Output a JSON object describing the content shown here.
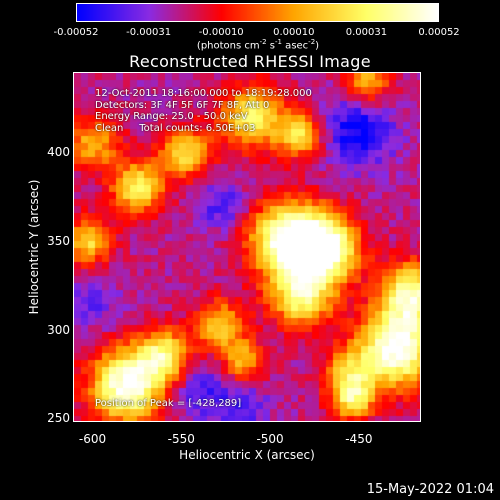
{
  "colorbar": {
    "ticks": [
      "-0.00052",
      "-0.00031",
      "-0.00010",
      "0.00010",
      "0.00031",
      "0.00052"
    ],
    "unit_base": "(photons cm",
    "unit_exp1": "-2",
    "unit_mid1": " s",
    "unit_exp2": "-1",
    "unit_mid2": " asec",
    "unit_exp3": "-2",
    "unit_end": ")"
  },
  "info_lines": [
    "12-Oct-2011 18:16:00.000 to 18:19:28.000",
    "Detectors: 3F 4F 5F 6F 7F 8F, Att 0",
    "Energy Range: 25.0 - 50.0 keV",
    "Clean     Total counts: 6.50E+03"
  ],
  "peak_text": "Position of Peak = [-428,289]",
  "footer_date": "15-May-2022 01:04",
  "chart_data": {
    "type": "heatmap",
    "title": "Reconstructed RHESSI Image",
    "xlabel": "Heliocentric X (arcsec)",
    "ylabel": "Heliocentric Y (arcsec)",
    "xlim": [
      -611,
      -415
    ],
    "ylim": [
      248,
      445
    ],
    "xticks": [
      "-600",
      "-550",
      "-500",
      "-450"
    ],
    "xtick_values": [
      -600,
      -550,
      -500,
      -450
    ],
    "yticks": [
      "250",
      "300",
      "350",
      "400"
    ],
    "ytick_values": [
      250,
      300,
      350,
      400
    ],
    "value_range": [
      -0.00052,
      0.00052
    ],
    "colormap": [
      "#0000ff",
      "#8a2be2",
      "#ff0000",
      "#ffa500",
      "#ffff66",
      "#ffffff"
    ],
    "peak": [
      -428,
      289
    ],
    "blobs": [
      {
        "x": -489,
        "y": 350,
        "sigma": 15,
        "amp": 1.0
      },
      {
        "x": -468,
        "y": 345,
        "sigma": 13,
        "amp": 0.9
      },
      {
        "x": -482,
        "y": 318,
        "sigma": 12,
        "amp": 0.7
      },
      {
        "x": -428,
        "y": 289,
        "sigma": 15,
        "amp": 1.0
      },
      {
        "x": -420,
        "y": 320,
        "sigma": 12,
        "amp": 0.8
      },
      {
        "x": -581,
        "y": 268,
        "sigma": 14,
        "amp": 1.0
      },
      {
        "x": -560,
        "y": 285,
        "sigma": 10,
        "amp": 0.7
      },
      {
        "x": -528,
        "y": 302,
        "sigma": 10,
        "amp": 0.55
      },
      {
        "x": -575,
        "y": 380,
        "sigma": 10,
        "amp": 0.7
      },
      {
        "x": -510,
        "y": 420,
        "sigma": 12,
        "amp": 0.7
      },
      {
        "x": -483,
        "y": 410,
        "sigma": 9,
        "amp": 0.6
      },
      {
        "x": -548,
        "y": 400,
        "sigma": 10,
        "amp": 0.6
      },
      {
        "x": -603,
        "y": 350,
        "sigma": 9,
        "amp": 0.6
      },
      {
        "x": -455,
        "y": 275,
        "sigma": 10,
        "amp": 0.5
      },
      {
        "x": -600,
        "y": 405,
        "sigma": 10,
        "amp": 0.5
      },
      {
        "x": -453,
        "y": 260,
        "sigma": 8,
        "amp": 0.6
      },
      {
        "x": -515,
        "y": 282,
        "sigma": 8,
        "amp": 0.5
      },
      {
        "x": -445,
        "y": 440,
        "sigma": 9,
        "amp": 0.5
      }
    ],
    "dips": [
      {
        "x": -450,
        "y": 412,
        "sigma": 14,
        "amp": 0.8
      },
      {
        "x": -527,
        "y": 370,
        "sigma": 10,
        "amp": 0.5
      },
      {
        "x": -540,
        "y": 265,
        "sigma": 12,
        "amp": 0.5
      },
      {
        "x": -600,
        "y": 315,
        "sigma": 10,
        "amp": 0.4
      },
      {
        "x": -515,
        "y": 255,
        "sigma": 10,
        "amp": 0.5
      }
    ]
  }
}
